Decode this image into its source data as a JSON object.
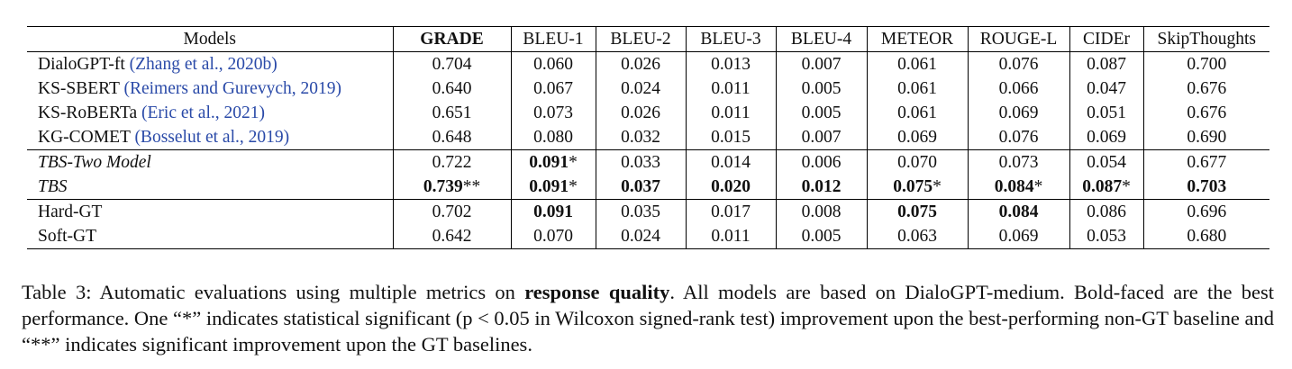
{
  "table": {
    "headers": [
      "Models",
      "GRADE",
      "BLEU-1",
      "BLEU-2",
      "BLEU-3",
      "BLEU-4",
      "METEOR",
      "ROUGE-L",
      "CIDEr",
      "SkipThoughts"
    ],
    "groups": [
      [
        {
          "name": "DialoGPT-ft",
          "cite": "(Zhang et al., 2020b)",
          "italic": false,
          "cells": [
            {
              "v": "0.704"
            },
            {
              "v": "0.060"
            },
            {
              "v": "0.026"
            },
            {
              "v": "0.013"
            },
            {
              "v": "0.007"
            },
            {
              "v": "0.061"
            },
            {
              "v": "0.076"
            },
            {
              "v": "0.087"
            },
            {
              "v": "0.700"
            }
          ]
        },
        {
          "name": "KS-SBERT",
          "cite": "(Reimers and Gurevych, 2019)",
          "italic": false,
          "cells": [
            {
              "v": "0.640"
            },
            {
              "v": "0.067"
            },
            {
              "v": "0.024"
            },
            {
              "v": "0.011"
            },
            {
              "v": "0.005"
            },
            {
              "v": "0.061"
            },
            {
              "v": "0.066"
            },
            {
              "v": "0.047"
            },
            {
              "v": "0.676"
            }
          ]
        },
        {
          "name": "KS-RoBERTa",
          "cite": "(Eric et al., 2021)",
          "italic": false,
          "cells": [
            {
              "v": "0.651"
            },
            {
              "v": "0.073"
            },
            {
              "v": "0.026"
            },
            {
              "v": "0.011"
            },
            {
              "v": "0.005"
            },
            {
              "v": "0.061"
            },
            {
              "v": "0.069"
            },
            {
              "v": "0.051"
            },
            {
              "v": "0.676"
            }
          ]
        },
        {
          "name": "KG-COMET",
          "cite": "(Bosselut et al., 2019)",
          "italic": false,
          "cells": [
            {
              "v": "0.648"
            },
            {
              "v": "0.080"
            },
            {
              "v": "0.032"
            },
            {
              "v": "0.015"
            },
            {
              "v": "0.007"
            },
            {
              "v": "0.069"
            },
            {
              "v": "0.076"
            },
            {
              "v": "0.069"
            },
            {
              "v": "0.690"
            }
          ]
        }
      ],
      [
        {
          "name": "TBS-Two Model",
          "cite": "",
          "italic": true,
          "cells": [
            {
              "v": "0.722"
            },
            {
              "v": "0.091",
              "b": true,
              "s": "*"
            },
            {
              "v": "0.033"
            },
            {
              "v": "0.014"
            },
            {
              "v": "0.006"
            },
            {
              "v": "0.070"
            },
            {
              "v": "0.073"
            },
            {
              "v": "0.054"
            },
            {
              "v": "0.677"
            }
          ]
        },
        {
          "name": "TBS",
          "cite": "",
          "italic": true,
          "cells": [
            {
              "v": "0.739",
              "b": true,
              "s": "**"
            },
            {
              "v": "0.091",
              "b": true,
              "s": "*"
            },
            {
              "v": "0.037",
              "b": true
            },
            {
              "v": "0.020",
              "b": true
            },
            {
              "v": "0.012",
              "b": true
            },
            {
              "v": "0.075",
              "b": true,
              "s": "*"
            },
            {
              "v": "0.084",
              "b": true,
              "s": "*"
            },
            {
              "v": "0.087",
              "b": true,
              "s": "*"
            },
            {
              "v": "0.703",
              "b": true
            }
          ]
        }
      ],
      [
        {
          "name": "Hard-GT",
          "cite": "",
          "italic": false,
          "cells": [
            {
              "v": "0.702"
            },
            {
              "v": "0.091",
              "b": true
            },
            {
              "v": "0.035"
            },
            {
              "v": "0.017"
            },
            {
              "v": "0.008"
            },
            {
              "v": "0.075",
              "b": true
            },
            {
              "v": "0.084",
              "b": true
            },
            {
              "v": "0.086"
            },
            {
              "v": "0.696"
            }
          ]
        },
        {
          "name": "Soft-GT",
          "cite": "",
          "italic": false,
          "cells": [
            {
              "v": "0.642"
            },
            {
              "v": "0.070"
            },
            {
              "v": "0.024"
            },
            {
              "v": "0.011"
            },
            {
              "v": "0.005"
            },
            {
              "v": "0.063"
            },
            {
              "v": "0.069"
            },
            {
              "v": "0.053"
            },
            {
              "v": "0.680"
            }
          ]
        }
      ]
    ]
  },
  "caption": {
    "label": "Table 3:",
    "text_before_bold": "Automatic evaluations using multiple metrics on",
    "bold": "response quality",
    "text_after_bold": ". All models are based on DialoGPT-medium. Bold-faced are the best performance. One “*” indicates statistical significant (p < 0.05 in Wilcoxon signed-rank test) improvement upon the best-performing non-GT baseline and “**” indicates significant improvement upon the GT baselines."
  },
  "colors": {
    "citation": "#2a4aa8",
    "text": "#111111",
    "rule": "#000000"
  }
}
